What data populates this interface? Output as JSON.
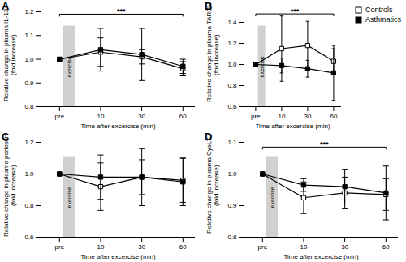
{
  "chart_data": [
    {
      "type": "line",
      "title": "A",
      "ylabel": "Relative change in plasma IL-13\n(fold increase)",
      "xlabel": "Time after excercise (min)",
      "categories": [
        "pre",
        "10",
        "30",
        "60"
      ],
      "ylim": [
        0.8,
        1.2
      ],
      "yticks": [
        0.8,
        0.9,
        {
          "value": 1,
          "label": "1.0"
        },
        1.1,
        1.2
      ],
      "series": [
        {
          "name": "Controls",
          "color": "#000000",
          "marker": "square-open",
          "values": [
            1.0,
            1.03,
            1.01,
            0.96
          ],
          "errors": [
            0,
            0.06,
            0.03,
            0.03
          ]
        },
        {
          "name": "Asthmatics",
          "color": "#000000",
          "marker": "square",
          "values": [
            1.0,
            1.04,
            1.02,
            0.97
          ],
          "errors": [
            0,
            0.09,
            0.11,
            0.03
          ]
        }
      ],
      "annotations": [
        {
          "type": "band",
          "text": "exercise"
        },
        {
          "type": "bracket",
          "text": "***",
          "y": 1.19
        }
      ]
    },
    {
      "type": "line",
      "title": "B",
      "ylabel": "Relative change in plasma TARC\n(fold increase)",
      "xlabel": "Time after excercise (min)",
      "categories": [
        "pre",
        "10",
        "30",
        "60"
      ],
      "ylim": [
        0.6,
        1.5
      ],
      "yticks": [
        0.6,
        0.8,
        {
          "value": 1,
          "label": "1.0"
        },
        1.2,
        1.4
      ],
      "legend": "top-right",
      "series": [
        {
          "name": "Controls",
          "color": "#000000",
          "marker": "square-open",
          "values": [
            1.0,
            1.15,
            1.18,
            1.03
          ],
          "errors": [
            0,
            0.31,
            0.23,
            0.12
          ]
        },
        {
          "name": "Asthmatics",
          "color": "#000000",
          "marker": "square",
          "values": [
            1.0,
            0.99,
            0.96,
            0.92
          ],
          "errors": [
            0,
            0.07,
            0.08,
            0.26
          ]
        }
      ],
      "annotations": [
        {
          "type": "band",
          "text": "exercise"
        },
        {
          "type": "bracket",
          "text": "***",
          "y": 1.48
        }
      ]
    },
    {
      "type": "line",
      "title": "C",
      "ylabel": "Relative change in plasma periostin\n(fold increase)",
      "xlabel": "Time after excercise (min)",
      "categories": [
        "pre",
        "10",
        "30",
        "60"
      ],
      "ylim": [
        0.6,
        1.2
      ],
      "yticks": [
        0.6,
        0.8,
        {
          "value": 1,
          "label": "1.0"
        },
        1.2
      ],
      "series": [
        {
          "name": "Controls",
          "color": "#000000",
          "marker": "square-open",
          "values": [
            1.0,
            0.92,
            0.98,
            0.96
          ],
          "errors": [
            0,
            0.15,
            0.18,
            0.14
          ]
        },
        {
          "name": "Asthmatics",
          "color": "#000000",
          "marker": "square",
          "values": [
            1.0,
            0.98,
            0.98,
            0.95
          ],
          "errors": [
            0,
            0.14,
            0.11,
            0.15
          ]
        }
      ],
      "annotations": [
        {
          "type": "band",
          "text": "exercise"
        }
      ]
    },
    {
      "type": "line",
      "title": "D",
      "ylabel": "Relative change in plasma CysLT\n(fold increase)",
      "xlabel": "Time after excercise (min)",
      "categories": [
        "pre",
        "10",
        "30",
        "60"
      ],
      "ylim": [
        0.8,
        1.1
      ],
      "yticks": [
        0.8,
        0.9,
        {
          "value": 1,
          "label": "1.0"
        },
        1.1
      ],
      "series": [
        {
          "name": "Controls",
          "color": "#000000",
          "marker": "square-open",
          "values": [
            1.0,
            0.925,
            0.94,
            0.935
          ],
          "errors": [
            0,
            0.05,
            0.05,
            0.05
          ]
        },
        {
          "name": "Asthmatics",
          "color": "#000000",
          "marker": "square",
          "values": [
            1.0,
            0.965,
            0.96,
            0.94
          ],
          "errors": [
            0,
            0.02,
            0.055,
            0.085
          ]
        }
      ],
      "annotations": [
        {
          "type": "band",
          "text": "exercise"
        },
        {
          "type": "bracket",
          "text": "***",
          "y": 1.085
        }
      ]
    }
  ]
}
